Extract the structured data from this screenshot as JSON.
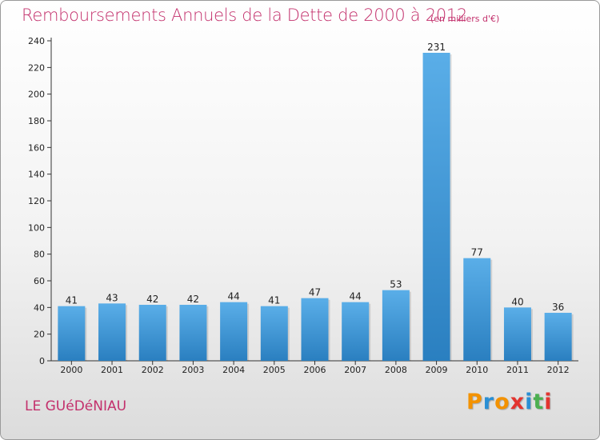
{
  "header": {
    "title": "Remboursements Annuels de la Dette de 2000 à 2012",
    "subtitle": "(en milliers d'€)"
  },
  "footer": {
    "commune": "LE GUéDéNIAU",
    "logo_letters": [
      "P",
      "r",
      "o",
      "x",
      "i",
      "t",
      "i"
    ],
    "logo_colors": [
      "#f39200",
      "#2a8fd4",
      "#f39200",
      "#e3342f",
      "#2a8fd4",
      "#4caf50",
      "#e3342f"
    ]
  },
  "chart_data": {
    "type": "bar",
    "title": "Remboursements Annuels de la Dette de 2000 à 2012",
    "subtitle": "(en milliers d'€)",
    "xlabel": "",
    "ylabel": "",
    "categories": [
      "2000",
      "2001",
      "2002",
      "2003",
      "2004",
      "2005",
      "2006",
      "2007",
      "2008",
      "2009",
      "2010",
      "2011",
      "2012"
    ],
    "values": [
      41,
      43,
      42,
      42,
      44,
      41,
      47,
      44,
      53,
      231,
      77,
      40,
      36
    ],
    "ylim": [
      0,
      240
    ],
    "yticks": [
      0,
      20,
      40,
      60,
      80,
      100,
      120,
      140,
      160,
      180,
      200,
      220,
      240
    ],
    "grid": false,
    "bar_color_top": "#5aaee8",
    "bar_color_bottom": "#2a7fc0",
    "title_color": "#c3306c"
  }
}
